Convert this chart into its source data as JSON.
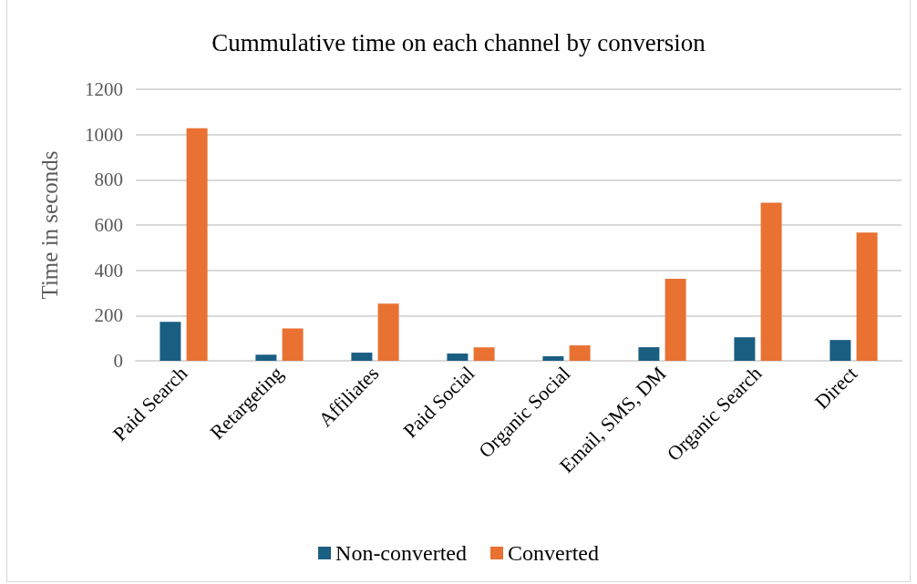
{
  "chart_data": {
    "type": "bar",
    "title": "Cummulative time on each channel by conversion",
    "ylabel": "Time in seconds",
    "categories": [
      "Paid Search",
      "Retargeting",
      "Affiliates",
      "Paid Social",
      "Organic Social",
      "Email, SMS, DM",
      "Organic Search",
      "Direct"
    ],
    "series": [
      {
        "name": "Non-converted",
        "color": "#1a5e82",
        "values": [
          172,
          27,
          36,
          32,
          20,
          60,
          104,
          92
        ]
      },
      {
        "name": "Converted",
        "color": "#e97132",
        "values": [
          1028,
          143,
          253,
          59,
          68,
          362,
          699,
          567
        ]
      }
    ],
    "ylim": [
      0,
      1200
    ],
    "yticks": [
      0,
      200,
      400,
      600,
      800,
      1000,
      1200
    ],
    "grid": "y",
    "legend": "bottom"
  }
}
